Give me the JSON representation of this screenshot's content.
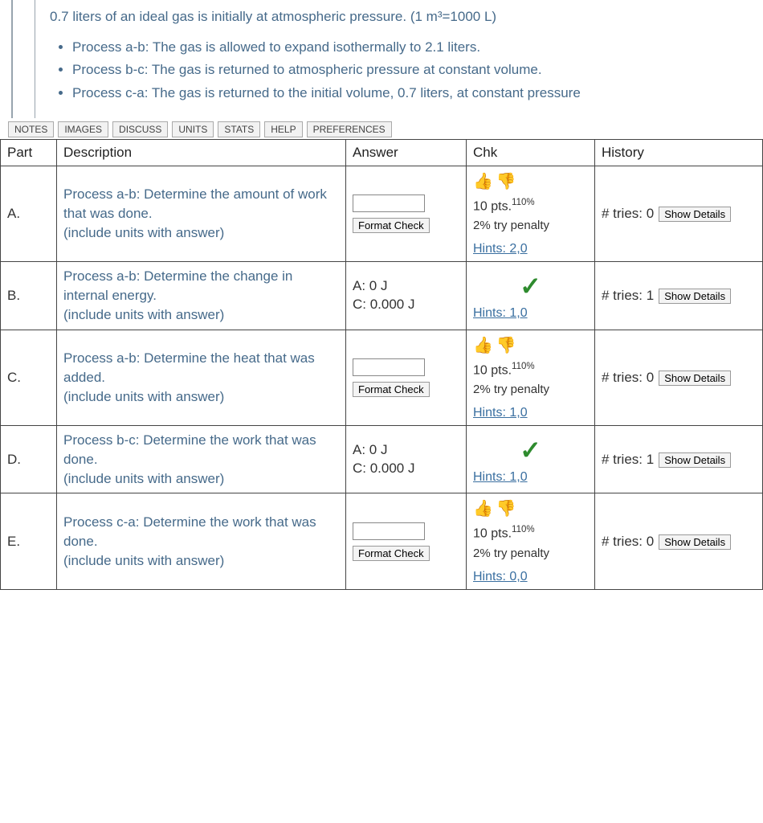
{
  "problem": {
    "intro": "0.7 liters of an ideal gas is initially at atmospheric pressure. (1 m³=1000 L)",
    "bullets": [
      "Process a-b: The gas is allowed to expand isothermally to 2.1 liters.",
      "Process b-c: The gas is returned to atmospheric pressure at constant volume.",
      "Process c-a: The gas is returned to the initial volume, 0.7 liters, at constant pressure"
    ]
  },
  "toolbar": {
    "notes": "NOTES",
    "images": "IMAGES",
    "discuss": "DISCUSS",
    "units": "UNITS",
    "stats": "STATS",
    "help": "HELP",
    "preferences": "PREFERENCES"
  },
  "headers": {
    "part": "Part",
    "description": "Description",
    "answer": "Answer",
    "chk": "Chk",
    "history": "History"
  },
  "labels": {
    "format_check": "Format Check",
    "show_details": "Show Details",
    "tries_prefix": "# tries: "
  },
  "parts": [
    {
      "id": "A.",
      "desc": "Process a-b: Determine the amount of work that was done.\n(include units with answer)",
      "answer_mode": "input",
      "chk_mode": "pending",
      "pts_text": "10 pts.",
      "pts_bonus": "110%",
      "penalty": "2% try penalty",
      "hints": "Hints: 2,0",
      "tries": "0"
    },
    {
      "id": "B.",
      "desc": "Process a-b: Determine the change in internal energy.\n(include units with answer)",
      "answer_mode": "static",
      "answer_a": "A: 0 J",
      "answer_c": "C: 0.000 J",
      "chk_mode": "correct",
      "hints": "Hints: 1,0",
      "tries": "1"
    },
    {
      "id": "C.",
      "desc": "Process a-b: Determine the heat that was added.\n(include units with answer)",
      "answer_mode": "input",
      "chk_mode": "pending",
      "pts_text": "10 pts.",
      "pts_bonus": "110%",
      "penalty": "2% try penalty",
      "hints": "Hints: 1,0",
      "tries": "0"
    },
    {
      "id": "D.",
      "desc": "Process b-c: Determine the work that was done.\n(include units with answer)",
      "answer_mode": "static",
      "answer_a": "A: 0 J",
      "answer_c": "C: 0.000 J",
      "chk_mode": "correct",
      "hints": "Hints: 1,0",
      "tries": "1"
    },
    {
      "id": "E.",
      "desc": "Process c-a: Determine the work that was done.\n(include units with answer)",
      "answer_mode": "input",
      "chk_mode": "pending",
      "pts_text": "10 pts.",
      "pts_bonus": "110%",
      "penalty": "2% try penalty",
      "hints": "Hints: 0,0",
      "tries": "0"
    }
  ]
}
